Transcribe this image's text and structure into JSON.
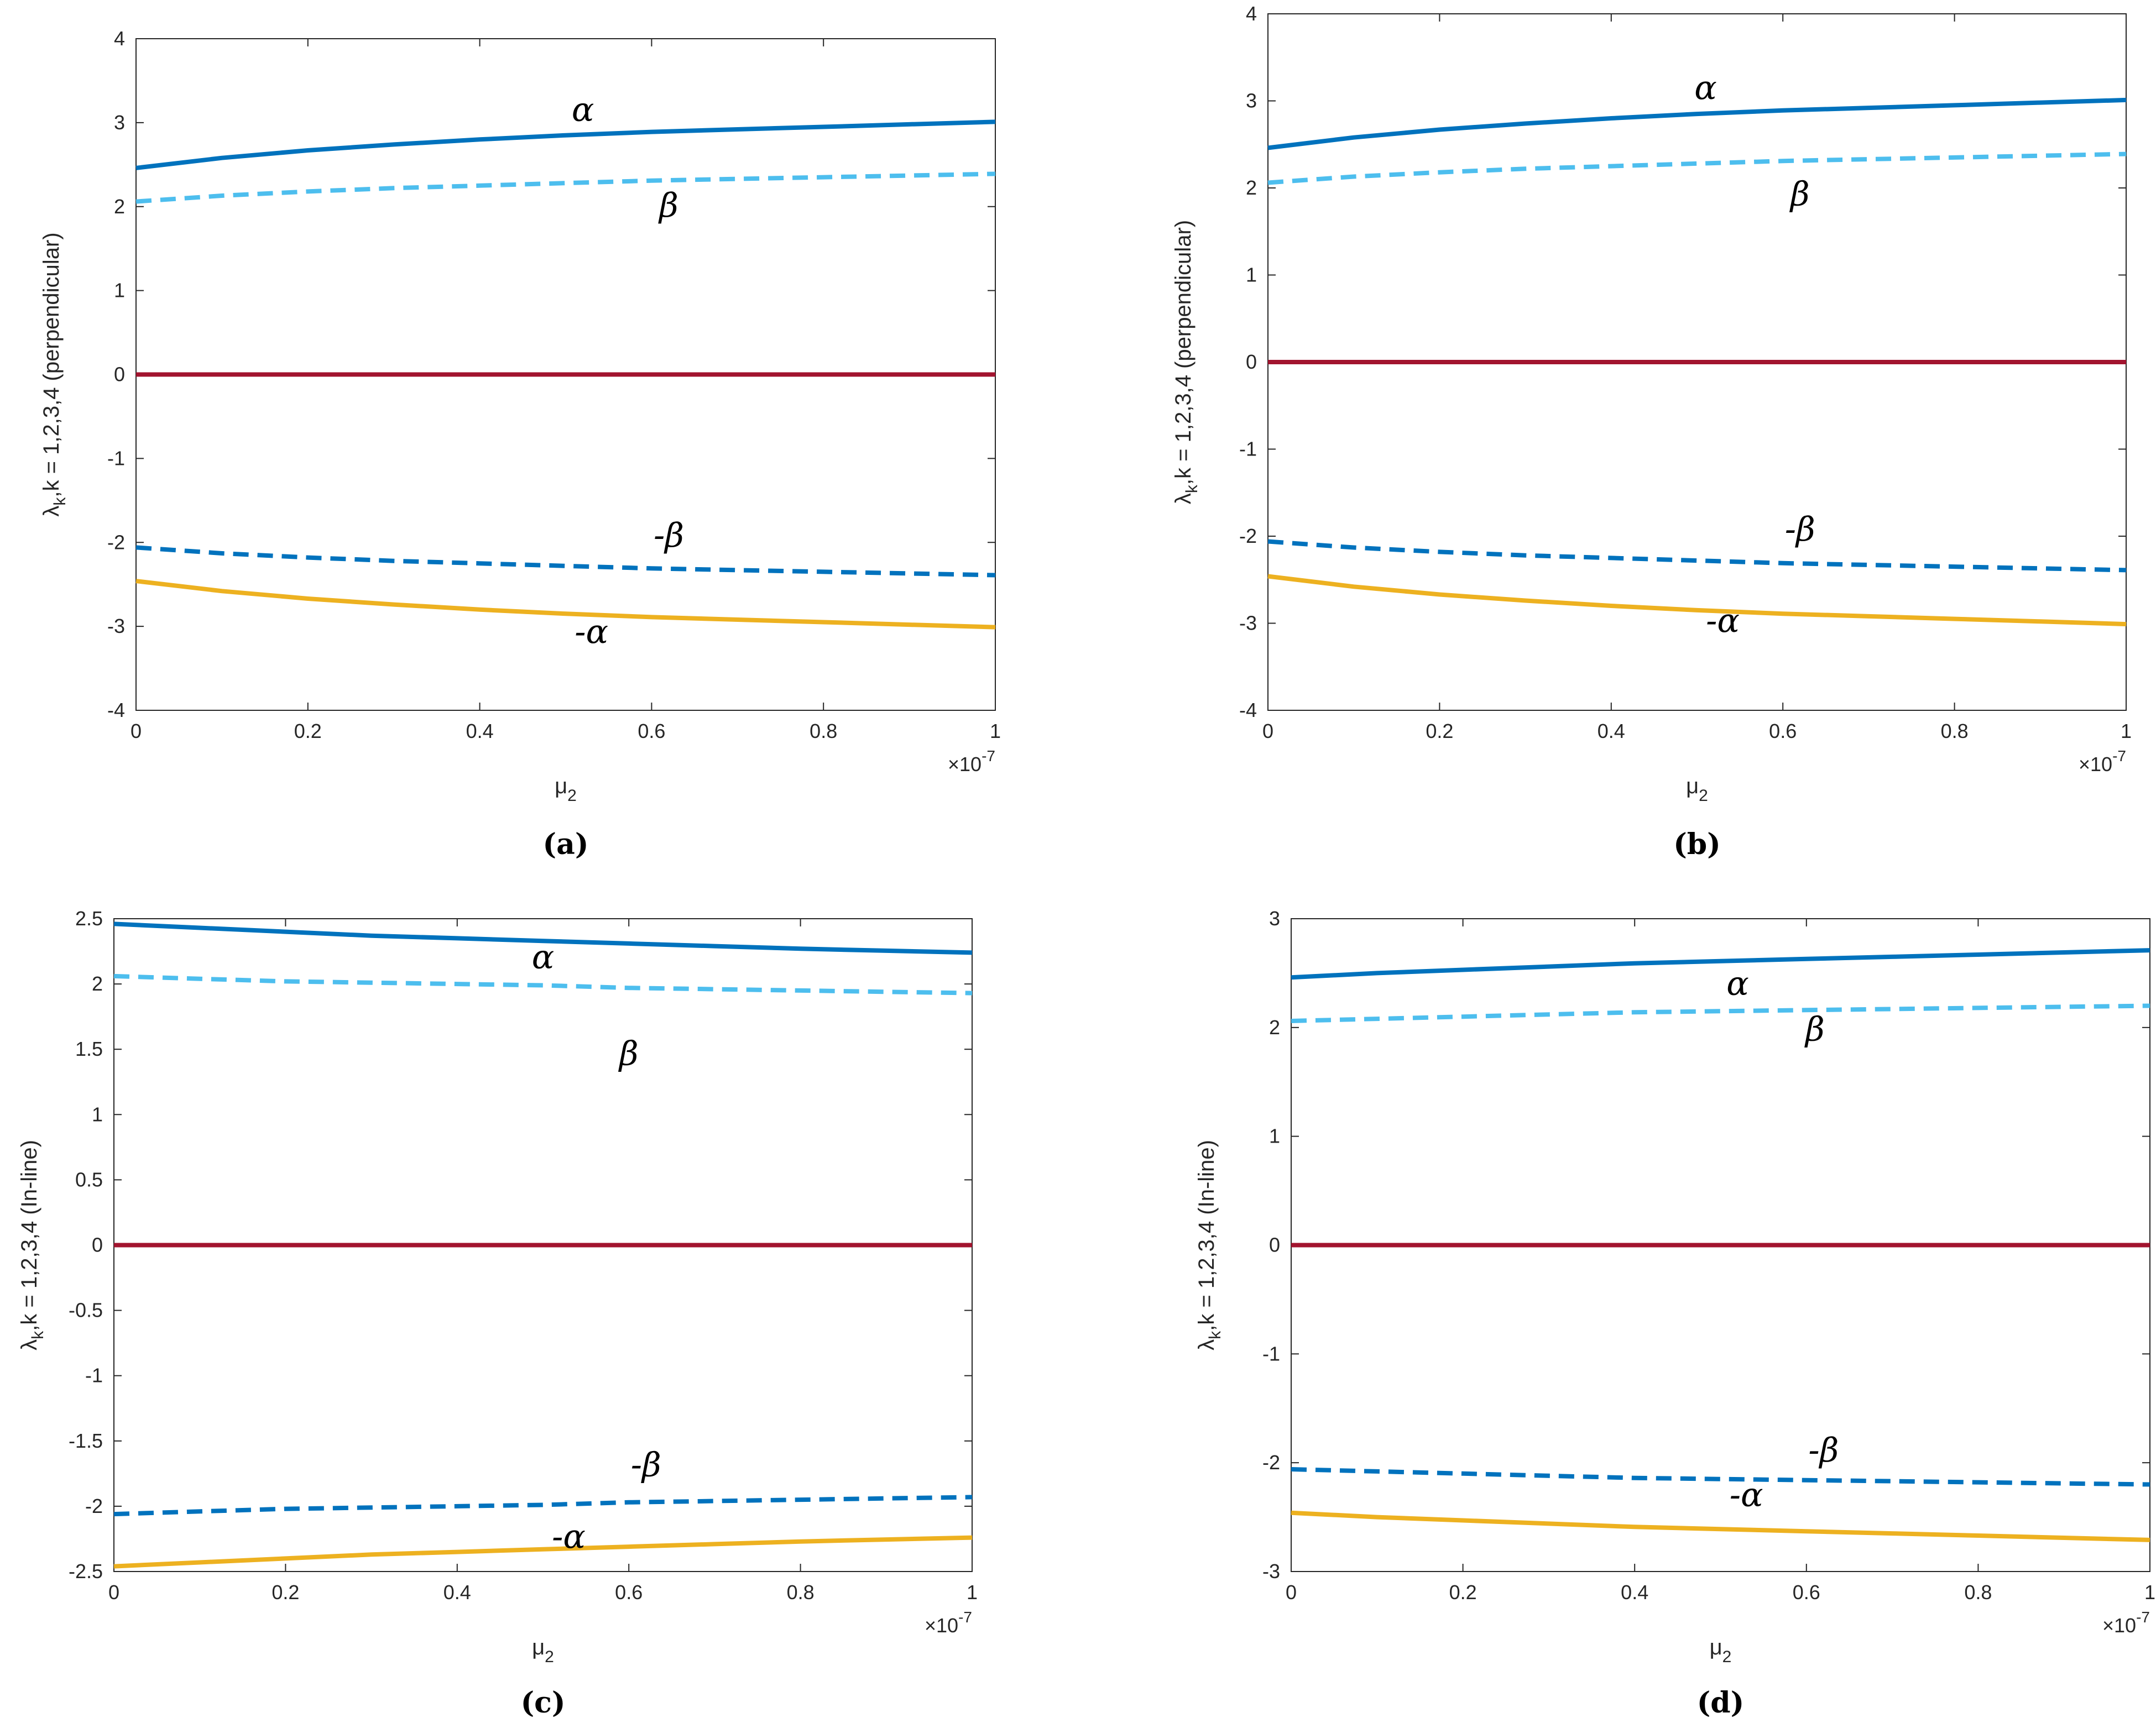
{
  "chart_data": [
    {
      "type": "line",
      "caption": "(a)",
      "xlabel": "μ2",
      "ylabel": "λk,k = 1,2,3,4 (perpendicular)",
      "x_exponent": "×10-7",
      "xlim": [
        0,
        1
      ],
      "ylim": [
        -4,
        4
      ],
      "xticks": [
        "0",
        "0.2",
        "0.4",
        "0.6",
        "0.8",
        "1"
      ],
      "yticks": [
        "-4",
        "-3",
        "-2",
        "-1",
        "0",
        "1",
        "2",
        "3",
        "4"
      ],
      "x": [
        0,
        0.1,
        0.2,
        0.3,
        0.4,
        0.5,
        0.6,
        0.7,
        0.8,
        0.9,
        1.0
      ],
      "series": [
        {
          "name": "α",
          "color": "#0072BD",
          "dash": "solid",
          "values": [
            2.46,
            2.58,
            2.67,
            2.74,
            2.8,
            2.85,
            2.89,
            2.92,
            2.95,
            2.98,
            3.01
          ]
        },
        {
          "name": "β",
          "color": "#4DBEEE",
          "dash": "dashed",
          "values": [
            2.06,
            2.13,
            2.18,
            2.22,
            2.25,
            2.28,
            2.31,
            2.33,
            2.35,
            2.37,
            2.39
          ]
        },
        {
          "name": "0",
          "color": "#A2142F",
          "dash": "solid",
          "values": [
            0,
            0,
            0,
            0,
            0,
            0,
            0,
            0,
            0,
            0,
            0
          ]
        },
        {
          "name": "-β",
          "color": "#0072BD",
          "dash": "dashed",
          "values": [
            -2.06,
            -2.13,
            -2.18,
            -2.22,
            -2.25,
            -2.28,
            -2.31,
            -2.33,
            -2.35,
            -2.37,
            -2.39
          ]
        },
        {
          "name": "-α",
          "color": "#EDB120",
          "dash": "solid",
          "values": [
            -2.46,
            -2.58,
            -2.67,
            -2.74,
            -2.8,
            -2.85,
            -2.89,
            -2.92,
            -2.95,
            -2.98,
            -3.01
          ]
        }
      ],
      "annotations": [
        {
          "text": "α",
          "x": 0.52,
          "y": 3.02
        },
        {
          "text": "β",
          "x": 0.62,
          "y": 1.88
        },
        {
          "text": "-β",
          "x": 0.62,
          "y": -2.05
        },
        {
          "text": "-α",
          "x": 0.53,
          "y": -3.2
        }
      ]
    },
    {
      "type": "line",
      "caption": "(b)",
      "xlabel": "μ2",
      "ylabel": "λk,k = 1,2,3,4 (perpendicular)",
      "x_exponent": "×10-7",
      "xlim": [
        0,
        1
      ],
      "ylim": [
        -4,
        4
      ],
      "xticks": [
        "0",
        "0.2",
        "0.4",
        "0.6",
        "0.8",
        "1"
      ],
      "yticks": [
        "-4",
        "-3",
        "-2",
        "-1",
        "0",
        "1",
        "2",
        "3",
        "4"
      ],
      "x": [
        0,
        0.1,
        0.2,
        0.3,
        0.4,
        0.5,
        0.6,
        0.7,
        0.8,
        0.9,
        1.0
      ],
      "series": [
        {
          "name": "α",
          "color": "#0072BD",
          "dash": "solid",
          "values": [
            2.46,
            2.58,
            2.67,
            2.74,
            2.8,
            2.85,
            2.89,
            2.92,
            2.95,
            2.98,
            3.01
          ]
        },
        {
          "name": "β",
          "color": "#4DBEEE",
          "dash": "dashed",
          "values": [
            2.06,
            2.13,
            2.18,
            2.22,
            2.25,
            2.28,
            2.31,
            2.33,
            2.35,
            2.37,
            2.39
          ]
        },
        {
          "name": "0",
          "color": "#A2142F",
          "dash": "solid",
          "values": [
            0,
            0,
            0,
            0,
            0,
            0,
            0,
            0,
            0,
            0,
            0
          ]
        },
        {
          "name": "-β",
          "color": "#0072BD",
          "dash": "dashed",
          "values": [
            -2.06,
            -2.13,
            -2.18,
            -2.22,
            -2.25,
            -2.28,
            -2.31,
            -2.33,
            -2.35,
            -2.37,
            -2.39
          ]
        },
        {
          "name": "-α",
          "color": "#EDB120",
          "dash": "solid",
          "values": [
            -2.46,
            -2.58,
            -2.67,
            -2.74,
            -2.8,
            -2.85,
            -2.89,
            -2.92,
            -2.95,
            -2.98,
            -3.01
          ]
        }
      ],
      "annotations": [
        {
          "text": "α",
          "x": 0.51,
          "y": 3.02
        },
        {
          "text": "β",
          "x": 0.62,
          "y": 1.8
        },
        {
          "text": "-β",
          "x": 0.62,
          "y": -2.05
        },
        {
          "text": "-α",
          "x": 0.53,
          "y": -3.1
        }
      ]
    },
    {
      "type": "line",
      "caption": "(c)",
      "xlabel": "μ2",
      "ylabel": "λk,k = 1,2,3,4 (In-line)",
      "x_exponent": "×10-7",
      "xlim": [
        0,
        1
      ],
      "ylim": [
        -2.5,
        2.5
      ],
      "xticks": [
        "0",
        "0.2",
        "0.4",
        "0.6",
        "0.8",
        "1"
      ],
      "yticks": [
        "-2.5",
        "-2",
        "-1.5",
        "-1",
        "-0.5",
        "0",
        "0.5",
        "1",
        "1.5",
        "2",
        "2.5"
      ],
      "x": [
        0,
        0.1,
        0.2,
        0.3,
        0.4,
        0.5,
        0.6,
        0.7,
        0.8,
        0.9,
        1.0
      ],
      "series": [
        {
          "name": "α",
          "color": "#0072BD",
          "dash": "solid",
          "values": [
            2.46,
            2.43,
            2.4,
            2.37,
            2.35,
            2.33,
            2.31,
            2.29,
            2.27,
            2.255,
            2.24
          ]
        },
        {
          "name": "β",
          "color": "#4DBEEE",
          "dash": "dashed",
          "values": [
            2.06,
            2.04,
            2.02,
            2.01,
            2.0,
            1.99,
            1.97,
            1.96,
            1.95,
            1.94,
            1.93
          ]
        },
        {
          "name": "0",
          "color": "#A2142F",
          "dash": "solid",
          "values": [
            0,
            0,
            0,
            0,
            0,
            0,
            0,
            0,
            0,
            0,
            0
          ]
        },
        {
          "name": "-β",
          "color": "#0072BD",
          "dash": "dashed",
          "values": [
            -2.06,
            -2.04,
            -2.02,
            -2.01,
            -2.0,
            -1.99,
            -1.97,
            -1.96,
            -1.95,
            -1.94,
            -1.93
          ]
        },
        {
          "name": "-α",
          "color": "#EDB120",
          "dash": "solid",
          "values": [
            -2.46,
            -2.43,
            -2.4,
            -2.37,
            -2.35,
            -2.33,
            -2.31,
            -2.29,
            -2.27,
            -2.255,
            -2.24
          ]
        }
      ],
      "annotations": [
        {
          "text": "α",
          "x": 0.5,
          "y": 2.12
        },
        {
          "text": "β",
          "x": 0.6,
          "y": 1.38
        },
        {
          "text": "-β",
          "x": 0.62,
          "y": -1.77
        },
        {
          "text": "-α",
          "x": 0.53,
          "y": -2.32
        }
      ]
    },
    {
      "type": "line",
      "caption": "(d)",
      "xlabel": "μ2",
      "ylabel": "λk,k = 1,2,3,4 (In-line)",
      "x_exponent": "×10-7",
      "xlim": [
        0,
        1
      ],
      "ylim": [
        -3,
        3
      ],
      "xticks": [
        "0",
        "0.2",
        "0.4",
        "0.6",
        "0.8",
        "1"
      ],
      "yticks": [
        "-3",
        "-2",
        "-1",
        "0",
        "1",
        "2",
        "3"
      ],
      "x": [
        0,
        0.1,
        0.2,
        0.3,
        0.4,
        0.5,
        0.6,
        0.7,
        0.8,
        0.9,
        1.0
      ],
      "series": [
        {
          "name": "α",
          "color": "#0072BD",
          "dash": "solid",
          "values": [
            2.46,
            2.5,
            2.53,
            2.56,
            2.59,
            2.61,
            2.63,
            2.65,
            2.67,
            2.69,
            2.71
          ]
        },
        {
          "name": "β",
          "color": "#4DBEEE",
          "dash": "dashed",
          "values": [
            2.06,
            2.08,
            2.1,
            2.12,
            2.14,
            2.15,
            2.16,
            2.17,
            2.18,
            2.19,
            2.2
          ]
        },
        {
          "name": "0",
          "color": "#A2142F",
          "dash": "solid",
          "values": [
            0,
            0,
            0,
            0,
            0,
            0,
            0,
            0,
            0,
            0,
            0
          ]
        },
        {
          "name": "-β",
          "color": "#0072BD",
          "dash": "dashed",
          "values": [
            -2.06,
            -2.08,
            -2.1,
            -2.12,
            -2.14,
            -2.15,
            -2.16,
            -2.17,
            -2.18,
            -2.19,
            -2.2
          ]
        },
        {
          "name": "-α",
          "color": "#EDB120",
          "dash": "solid",
          "values": [
            -2.46,
            -2.5,
            -2.53,
            -2.56,
            -2.59,
            -2.61,
            -2.63,
            -2.65,
            -2.67,
            -2.69,
            -2.71
          ]
        }
      ],
      "annotations": [
        {
          "text": "α",
          "x": 0.52,
          "y": 2.3
        },
        {
          "text": "β",
          "x": 0.61,
          "y": 1.88
        },
        {
          "text": "-β",
          "x": 0.62,
          "y": -1.99
        },
        {
          "text": "-α",
          "x": 0.53,
          "y": -2.4
        }
      ]
    }
  ]
}
